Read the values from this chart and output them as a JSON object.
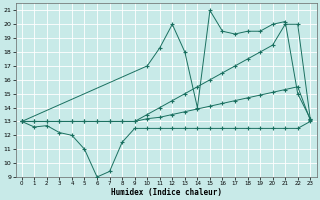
{
  "xlabel": "Humidex (Indice chaleur)",
  "background_color": "#c8eae8",
  "grid_color": "#ffffff",
  "line_color": "#1a7060",
  "xlim": [
    -0.5,
    23.5
  ],
  "ylim": [
    9,
    21.5
  ],
  "xticks": [
    0,
    1,
    2,
    3,
    4,
    5,
    6,
    7,
    8,
    9,
    10,
    11,
    12,
    13,
    14,
    15,
    16,
    17,
    18,
    19,
    20,
    21,
    22,
    23
  ],
  "yticks": [
    9,
    10,
    11,
    12,
    13,
    14,
    15,
    16,
    17,
    18,
    19,
    20,
    21
  ],
  "series": [
    {
      "x": [
        0,
        1,
        2,
        3,
        4,
        5,
        6,
        7,
        8,
        9,
        10,
        11,
        12,
        13,
        14,
        15,
        16,
        17,
        18,
        19,
        20,
        21,
        22,
        23
      ],
      "y": [
        13,
        12.6,
        12.7,
        12.2,
        12.0,
        11.0,
        9.0,
        9.4,
        11.5,
        12.5,
        12.5,
        12.5,
        12.5,
        12.5,
        12.5,
        12.5,
        12.5,
        12.5,
        12.5,
        12.5,
        12.5,
        12.5,
        12.5,
        13.0
      ]
    },
    {
      "x": [
        0,
        1,
        2,
        3,
        4,
        5,
        6,
        7,
        8,
        9,
        10,
        11,
        12,
        13,
        14,
        15,
        16,
        17,
        18,
        19,
        20,
        21,
        22,
        23
      ],
      "y": [
        13,
        13,
        13,
        13,
        13,
        13,
        13,
        13,
        13,
        13,
        13.2,
        13.3,
        13.5,
        13.7,
        13.9,
        14.1,
        14.3,
        14.5,
        14.7,
        14.9,
        15.1,
        15.3,
        15.5,
        13.1
      ]
    },
    {
      "x": [
        0,
        1,
        2,
        3,
        4,
        5,
        6,
        7,
        8,
        9,
        10,
        11,
        12,
        13,
        14,
        15,
        16,
        17,
        18,
        19,
        20,
        21,
        22,
        23
      ],
      "y": [
        13,
        13,
        13,
        13,
        13,
        13,
        13,
        13,
        13,
        13,
        13.5,
        14.0,
        14.5,
        15.0,
        15.5,
        16.0,
        16.5,
        17.0,
        17.5,
        18.0,
        18.5,
        20.0,
        20.0,
        13.2
      ]
    },
    {
      "x": [
        0,
        10,
        11,
        12,
        13,
        14,
        15,
        16,
        17,
        18,
        19,
        20,
        21,
        22,
        23
      ],
      "y": [
        13,
        17.0,
        18.3,
        20.0,
        18.0,
        14.0,
        21.0,
        19.5,
        19.3,
        19.5,
        19.5,
        20.0,
        20.2,
        15.0,
        13.2
      ]
    }
  ]
}
